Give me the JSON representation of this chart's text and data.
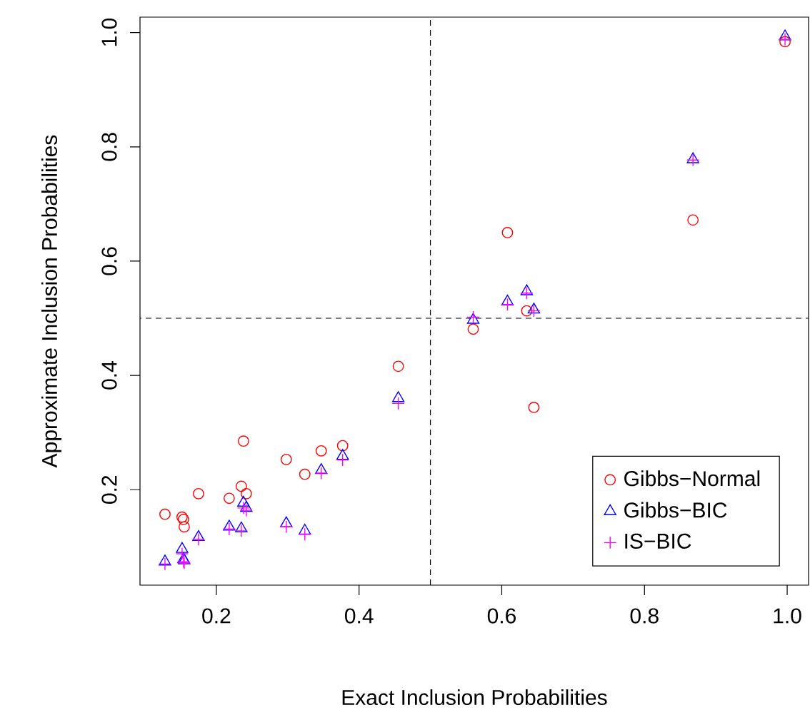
{
  "chart_data": {
    "type": "scatter",
    "xlabel": "Exact Inclusion Probabilities",
    "ylabel": "Approximate Inclusion Probabilities",
    "x": [
      0.128,
      0.152,
      0.154,
      0.155,
      0.175,
      0.218,
      0.235,
      0.238,
      0.242,
      0.298,
      0.324,
      0.347,
      0.377,
      0.455,
      0.56,
      0.608,
      0.635,
      0.645,
      0.868,
      0.997
    ],
    "series": [
      {
        "name": "Gibbs−Normal",
        "color": "#ff0000",
        "marker": "circle",
        "values": [
          0.157,
          0.152,
          0.148,
          0.135,
          0.193,
          0.185,
          0.206,
          0.285,
          0.193,
          0.253,
          0.227,
          0.268,
          0.277,
          0.416,
          0.481,
          0.65,
          0.513,
          0.344,
          0.672,
          0.984
        ]
      },
      {
        "name": "Gibbs−BIC",
        "color": "#0000ff",
        "marker": "triangle",
        "values": [
          0.074,
          0.096,
          0.078,
          0.076,
          0.117,
          0.135,
          0.132,
          0.177,
          0.168,
          0.141,
          0.128,
          0.234,
          0.259,
          0.36,
          0.497,
          0.529,
          0.547,
          0.515,
          0.778,
          0.993
        ]
      },
      {
        "name": "IS−BIC",
        "color": "#ff00ff",
        "marker": "cross",
        "values": [
          0.07,
          0.088,
          0.074,
          0.072,
          0.113,
          0.131,
          0.128,
          0.168,
          0.164,
          0.135,
          0.122,
          0.229,
          0.252,
          0.351,
          0.502,
          0.524,
          0.544,
          0.513,
          0.777,
          0.988
        ]
      }
    ],
    "xlim": [
      0.093,
      1.03
    ],
    "ylim": [
      0.033,
      1.027
    ],
    "xticks": [
      0.2,
      0.4,
      0.6,
      0.8,
      {
        "value": 1.0,
        "label": "1.0"
      }
    ],
    "yticks": [
      0.2,
      0.4,
      0.6,
      0.8,
      {
        "value": 1.0,
        "label": "1.0"
      }
    ],
    "ref_lines": [
      {
        "axis": "x",
        "value": 0.5,
        "line_style": "dashed"
      },
      {
        "axis": "y",
        "value": 0.5,
        "line_style": "dashed"
      }
    ],
    "legend": "bottom right",
    "grid": false
  }
}
